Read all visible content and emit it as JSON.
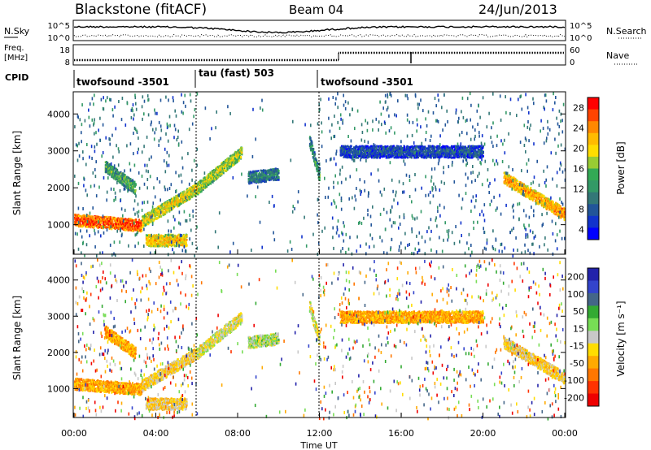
{
  "header": {
    "station": "Blackstone (fitACF)",
    "beam": "Beam 04",
    "date": "24/Jun/2013"
  },
  "noise_panel": {
    "left_label": "N.Sky",
    "left_ticks": [
      "10^5",
      "10^0"
    ],
    "right_ticks": [
      "10^5",
      "10^0"
    ],
    "right_label": "N.Search"
  },
  "freq_panel": {
    "left_label_1": "Freq.",
    "left_label_2": "[MHz]",
    "left_ticks": [
      "18",
      "8"
    ],
    "right_ticks": [
      "60",
      "0"
    ],
    "right_label": "Nave"
  },
  "cpid": {
    "label": "CPID",
    "segments": [
      {
        "name": "twofsound -3501"
      },
      {
        "name": "tau (fast) 503"
      },
      {
        "name": "twofsound -3501"
      }
    ]
  },
  "axes": {
    "y_label": "Slant Range [km]",
    "y_ticks": [
      "4000",
      "3000",
      "2000",
      "1000"
    ],
    "x_ticks": [
      "00:00",
      "04:00",
      "08:00",
      "12:00",
      "16:00",
      "20:00",
      "00:00"
    ],
    "x_label": "Time UT"
  },
  "power_colorbar": {
    "label": "Power [dB]",
    "ticks": [
      "28",
      "24",
      "20",
      "16",
      "12",
      "8",
      "4"
    ],
    "colors": [
      "#ff0000",
      "#ff4400",
      "#ff8800",
      "#ffbb00",
      "#ffdd00",
      "#99cc33",
      "#33aa55",
      "#339966",
      "#337777",
      "#225599",
      "#1133cc",
      "#0000ff"
    ]
  },
  "velocity_colorbar": {
    "label": "Velocity [m s⁻¹]",
    "ticks": [
      "200",
      "100",
      "50",
      "15",
      "-15",
      "-50",
      "-100",
      "-200"
    ],
    "colors": [
      "#2222aa",
      "#3344cc",
      "#446688",
      "#33aa33",
      "#77dd55",
      "#c8c8c8",
      "#ffdd00",
      "#ffaa00",
      "#ff7700",
      "#ff3300",
      "#ee0000"
    ]
  },
  "chart_data": {
    "type": "heatmap",
    "x_range": [
      "00:00",
      "24:00"
    ],
    "y_range_km": [
      200,
      4600
    ],
    "cpid_changes_hours": [
      6,
      12
    ],
    "echo_bands": [
      {
        "t_start": 0,
        "t_end": 3.3,
        "range_start": 1150,
        "range_end": 1000,
        "power_db": 28,
        "velocity": -100
      },
      {
        "t_start": 3.3,
        "t_end": 6,
        "range_start": 1100,
        "range_end": 2000,
        "power_db": 20,
        "velocity": -50
      },
      {
        "t_start": 1.5,
        "t_end": 3,
        "range_start": 2600,
        "range_end": 2000,
        "power_db": 14,
        "velocity": -100
      },
      {
        "t_start": 6,
        "t_end": 8.2,
        "range_start": 2000,
        "range_end": 3000,
        "power_db": 18,
        "velocity": -15
      },
      {
        "t_start": 8.5,
        "t_end": 10,
        "range_start": 2300,
        "range_end": 2400,
        "power_db": 10,
        "velocity": 15
      },
      {
        "t_start": 11.5,
        "t_end": 12,
        "range_start": 3300,
        "range_end": 2300,
        "power_db": 12,
        "velocity": -15
      },
      {
        "t_start": 21,
        "t_end": 24,
        "range_start": 2300,
        "range_end": 1300,
        "power_db": 24,
        "velocity": -50
      },
      {
        "t_start": 13,
        "t_end": 20,
        "range_start": 3000,
        "range_end": 3000,
        "power_db": 6,
        "velocity": -100
      },
      {
        "t_start": 3.5,
        "t_end": 5.5,
        "range_start": 600,
        "range_end": 600,
        "power_db": 22,
        "velocity": -50
      }
    ]
  }
}
